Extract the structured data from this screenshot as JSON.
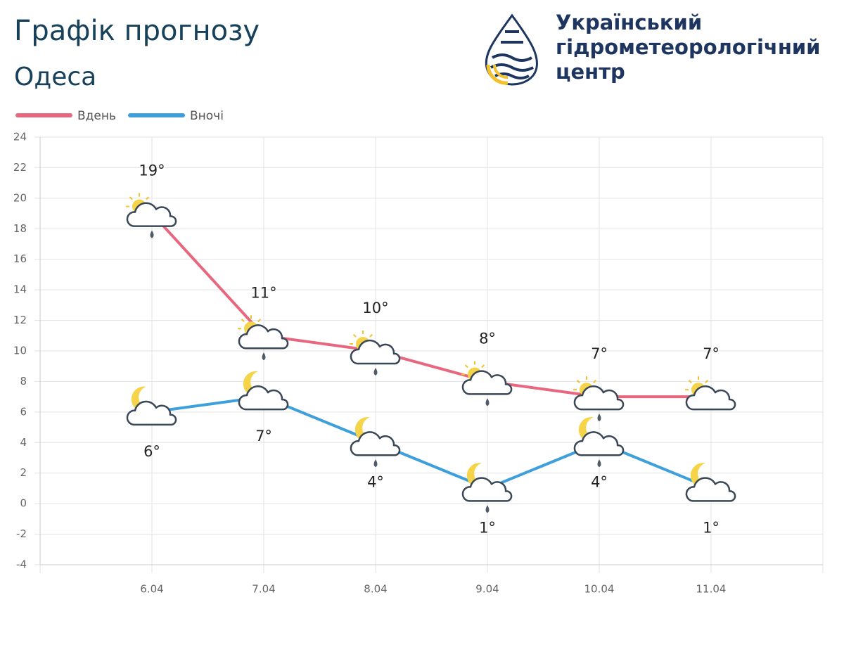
{
  "header": {
    "title": "Графік прогнозу",
    "subtitle": "Одеса",
    "organization": [
      "Український",
      "гідрометеорологічний",
      "центр"
    ]
  },
  "chart_data": {
    "type": "line",
    "categories": [
      "6.04",
      "7.04",
      "8.04",
      "9.04",
      "10.04",
      "11.04"
    ],
    "series": [
      {
        "name": "Вдень",
        "color": "#e8677f",
        "icon": "sun",
        "values": [
          19,
          11,
          10,
          8,
          7,
          7
        ],
        "value_labels": [
          "19°",
          "11°",
          "10°",
          "8°",
          "7°",
          "7°"
        ],
        "rain": [
          true,
          true,
          true,
          true,
          true,
          false
        ]
      },
      {
        "name": "Вночі",
        "color": "#3d9fdc",
        "icon": "moon",
        "values": [
          6,
          7,
          4,
          1,
          4,
          1
        ],
        "value_labels": [
          "6°",
          "7°",
          "4°",
          "1°",
          "4°",
          "1°"
        ],
        "rain": [
          false,
          false,
          true,
          true,
          true,
          false
        ]
      }
    ],
    "ylim": [
      -4,
      24
    ],
    "yticks": [
      -4,
      -2,
      0,
      2,
      4,
      6,
      8,
      10,
      12,
      14,
      16,
      18,
      20,
      22,
      24
    ],
    "grid": true,
    "legend": "top-left"
  }
}
